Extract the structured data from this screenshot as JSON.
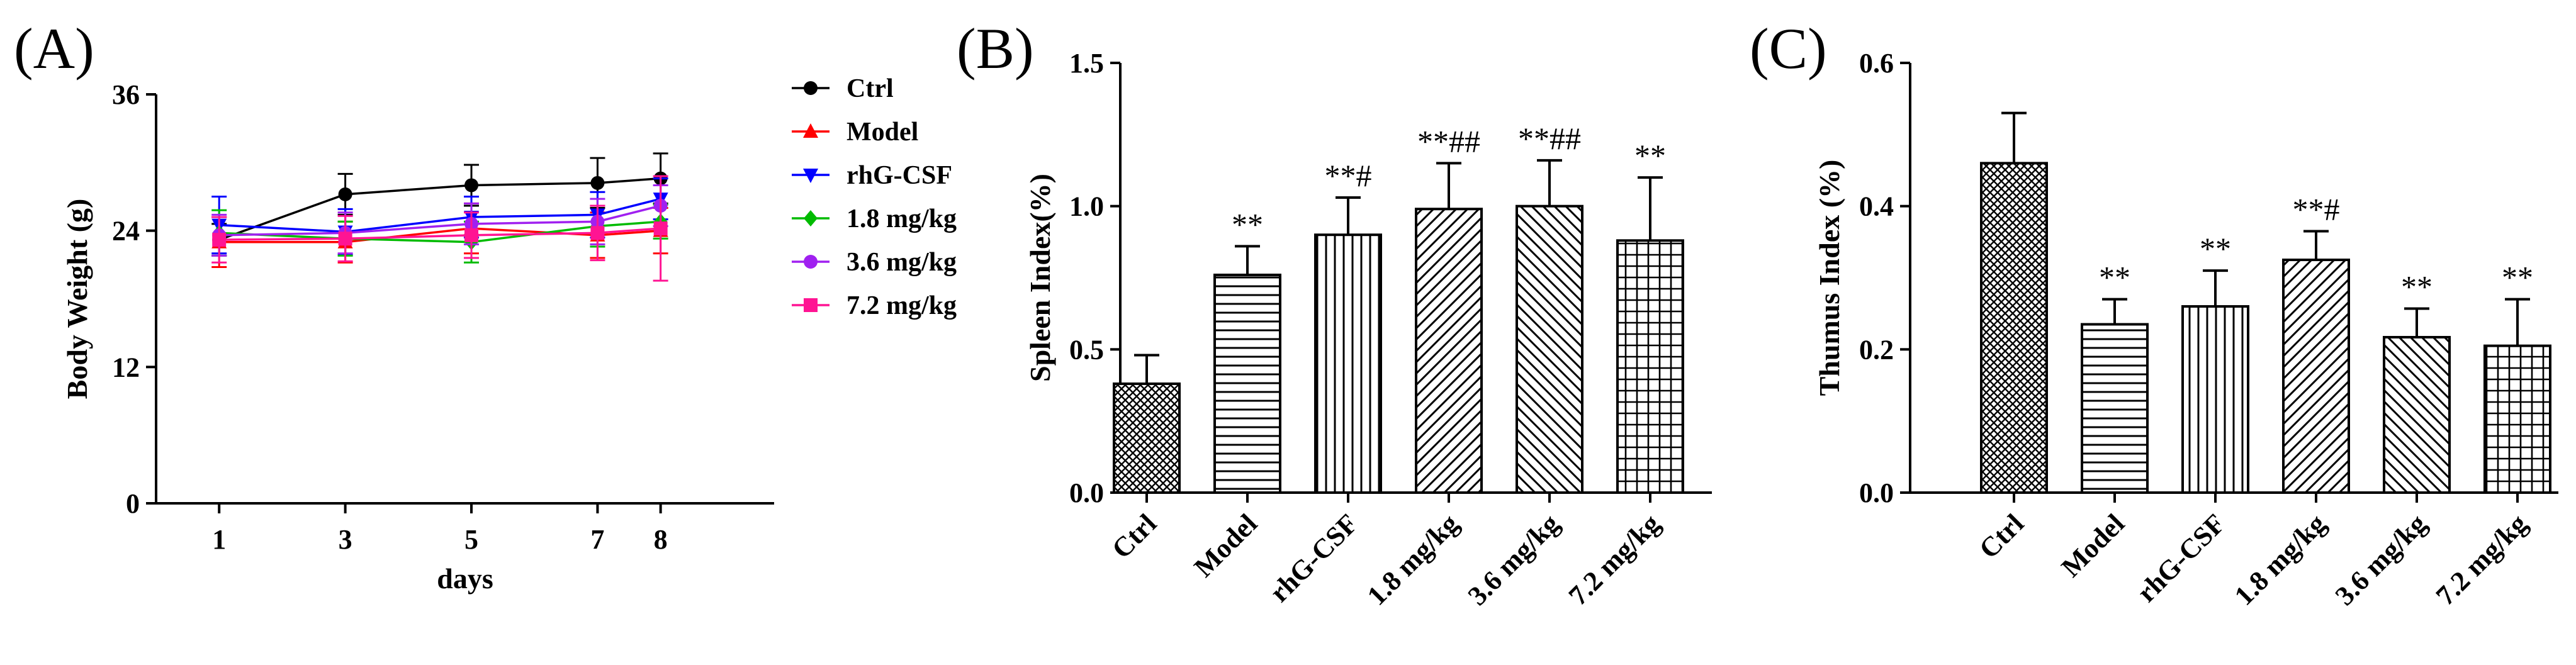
{
  "chart_data": [
    {
      "panel": "(A)",
      "type": "line",
      "xlabel": "days",
      "ylabel": "Body Weight (g)",
      "x": [
        1,
        3,
        5,
        7,
        8
      ],
      "x_ticks": [
        "1",
        "3",
        "5",
        "7",
        "8"
      ],
      "y_ticks": [
        "0",
        "12",
        "24",
        "36"
      ],
      "ylim": [
        0,
        36
      ],
      "grid": false,
      "legend": "right",
      "series": [
        {
          "name": "Ctrl",
          "color": "#000000",
          "marker": "circle",
          "values": [
            23.2,
            27.2,
            28.0,
            28.2,
            28.6
          ],
          "errors": [
            1.4,
            1.8,
            1.8,
            2.2,
            2.2
          ]
        },
        {
          "name": "Model",
          "color": "#ff0000",
          "marker": "triangle-up",
          "values": [
            23.0,
            23.0,
            24.2,
            23.6,
            24.0
          ],
          "errors": [
            2.2,
            1.8,
            2.2,
            2.0,
            2.0
          ]
        },
        {
          "name": "rhG-CSF",
          "color": "#0000ff",
          "marker": "triangle-down",
          "values": [
            24.5,
            23.9,
            25.2,
            25.4,
            26.8
          ],
          "errors": [
            2.5,
            2.0,
            1.8,
            2.0,
            1.8
          ]
        },
        {
          "name": "1.8 mg/kg",
          "color": "#00bb00",
          "marker": "diamond",
          "values": [
            23.8,
            23.3,
            23.0,
            24.4,
            24.8
          ],
          "errors": [
            2.0,
            1.5,
            1.8,
            1.8,
            1.5
          ]
        },
        {
          "name": "3.6 mg/kg",
          "color": "#a020f0",
          "marker": "circle",
          "values": [
            23.6,
            23.8,
            24.6,
            24.8,
            26.2
          ],
          "errors": [
            1.8,
            1.8,
            1.8,
            2.0,
            1.8
          ]
        },
        {
          "name": "7.2 mg/kg",
          "color": "#ff1493",
          "marker": "square",
          "values": [
            23.2,
            23.3,
            23.6,
            23.8,
            24.2
          ],
          "errors": [
            2.0,
            2.0,
            2.0,
            2.4,
            4.6
          ]
        }
      ]
    },
    {
      "panel": "(B)",
      "type": "bar",
      "ylabel": "Spleen Index(%)",
      "categories": [
        "Ctrl",
        "Model",
        "rhG-CSF",
        "1.8 mg/kg",
        "3.6 mg/kg",
        "7.2 mg/kg"
      ],
      "values": [
        0.38,
        0.76,
        0.9,
        0.99,
        1.0,
        0.88
      ],
      "errors": [
        0.1,
        0.1,
        0.13,
        0.16,
        0.16,
        0.22
      ],
      "annotations": [
        "",
        "**",
        "**#",
        "**##",
        "**##",
        "**"
      ],
      "patterns": [
        "crosshatch-diagonal",
        "horizontal",
        "vertical",
        "diagonal-up",
        "diagonal-down",
        "grid"
      ],
      "y_ticks": [
        "0.0",
        "0.5",
        "1.0",
        "1.5"
      ],
      "ylim": [
        0,
        1.5
      ],
      "grid": false
    },
    {
      "panel": "(C)",
      "type": "bar",
      "ylabel": "Thumus Index (%)",
      "categories": [
        "Ctrl",
        "Model",
        "rhG-CSF",
        "1.8 mg/kg",
        "3.6 mg/kg",
        "7.2 mg/kg"
      ],
      "values": [
        0.46,
        0.235,
        0.26,
        0.325,
        0.217,
        0.205
      ],
      "errors": [
        0.07,
        0.035,
        0.05,
        0.04,
        0.04,
        0.065
      ],
      "annotations": [
        "",
        "**",
        "**",
        "**#",
        "**",
        "**"
      ],
      "patterns": [
        "crosshatch-diagonal",
        "horizontal",
        "vertical",
        "diagonal-up",
        "diagonal-down",
        "grid"
      ],
      "y_ticks": [
        "0.0",
        "0.2",
        "0.4",
        "0.6"
      ],
      "ylim": [
        0,
        0.6
      ],
      "grid": false
    }
  ]
}
